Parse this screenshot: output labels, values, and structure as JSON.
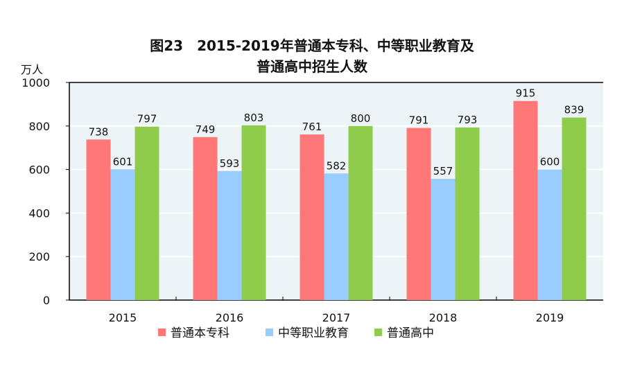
{
  "chart_data": {
    "type": "bar",
    "title": "图23　2015-2019年普通本专科、中等职业教育及",
    "title_line2": "普通高中招生人数",
    "ylabel": "万人",
    "xlabel": "",
    "ylim": [
      0,
      1000
    ],
    "yticks": [
      0,
      200,
      400,
      600,
      800,
      1000
    ],
    "grid": true,
    "legend_position": "bottom",
    "categories": [
      "2015",
      "2016",
      "2017",
      "2018",
      "2019"
    ],
    "series": [
      {
        "name": "普通本专科",
        "color": "#ff7777",
        "values": [
          738,
          749,
          761,
          791,
          915
        ]
      },
      {
        "name": "中等职业教育",
        "color": "#99ccff",
        "values": [
          601,
          593,
          582,
          557,
          600
        ]
      },
      {
        "name": "普通高中",
        "color": "#8fcc4c",
        "values": [
          797,
          803,
          800,
          793,
          839
        ]
      }
    ],
    "plot_background": "#edf4f8"
  }
}
